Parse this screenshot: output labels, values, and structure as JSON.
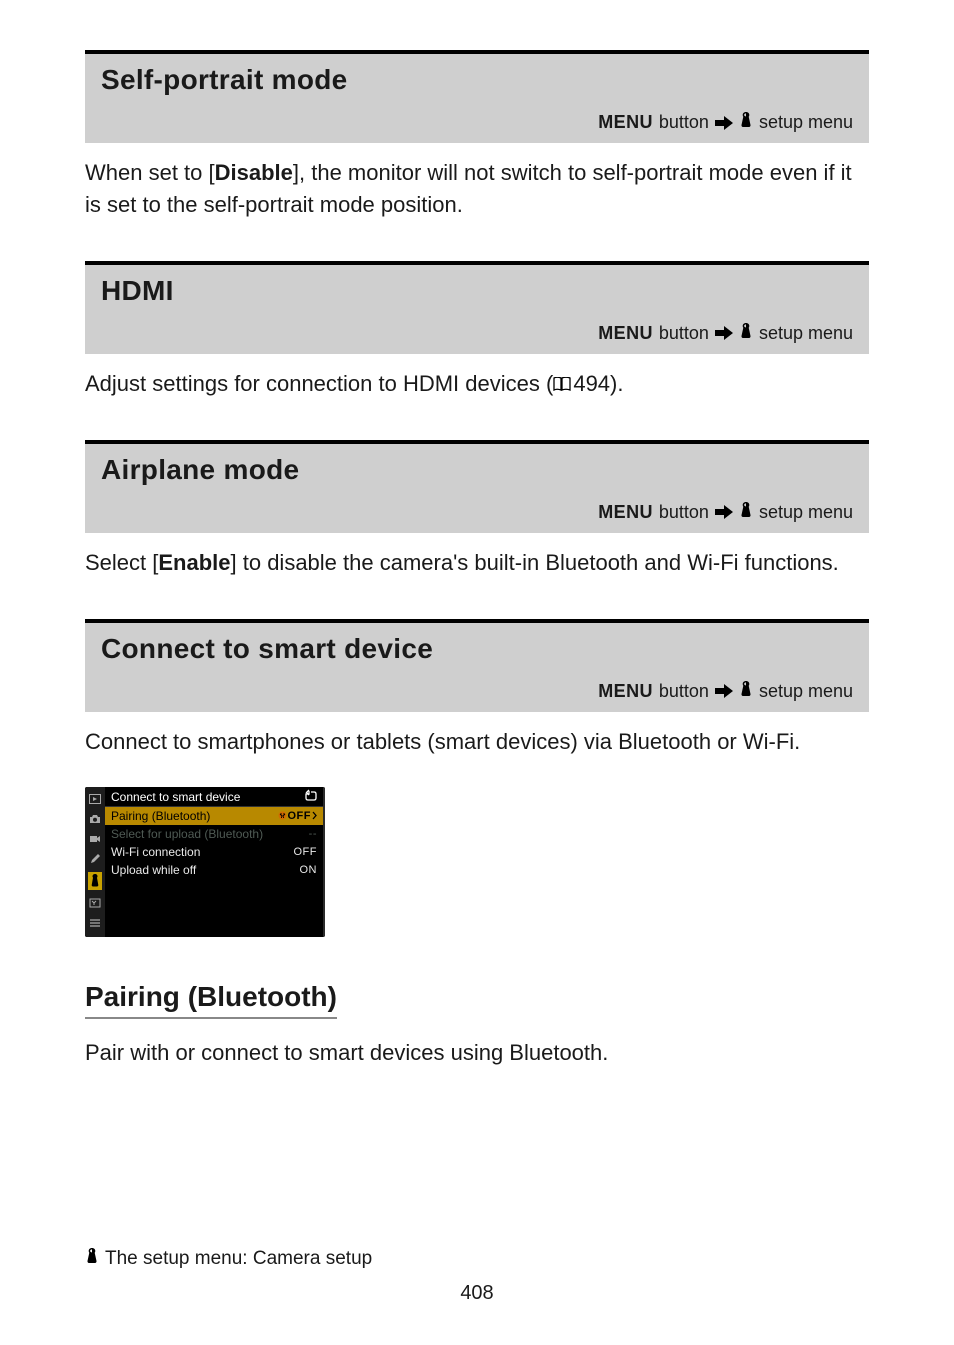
{
  "breadcrumb": {
    "menu_word": "MENU",
    "button_word": "button",
    "setup_menu": "setup menu"
  },
  "sections": {
    "self_portrait": {
      "title": "Self-portrait mode",
      "body_prefix": "When set to [",
      "body_bold": "Disable",
      "body_suffix": "], the monitor will not switch to self-portrait mode even if it is set to the self-portrait mode position."
    },
    "hdmi": {
      "title": "HDMI",
      "body_prefix": "Adjust settings for connection to HDMI devices (",
      "page_ref": "494",
      "body_suffix": ")."
    },
    "airplane": {
      "title": "Airplane mode",
      "body_prefix": "Select [",
      "body_bold": "Enable",
      "body_suffix": "] to disable the camera's built-in Bluetooth and Wi-Fi functions."
    },
    "connect": {
      "title": "Connect to smart device",
      "body": "Connect to smartphones or tablets (smart devices) via Bluetooth or Wi-Fi."
    },
    "pairing": {
      "title": "Pairing (Bluetooth)",
      "body": "Pair with or connect to smart devices using Bluetooth."
    }
  },
  "cam_screen": {
    "title": "Connect to smart device",
    "rows": [
      {
        "label": "Pairing (Bluetooth)",
        "value": "OFF",
        "style": "sel",
        "badge": true
      },
      {
        "label": "Select for upload (Bluetooth)",
        "value": "--",
        "style": "dim"
      },
      {
        "label": "Wi-Fi connection",
        "value": "OFF",
        "style": "normal"
      },
      {
        "label": "Upload while off",
        "value": "ON",
        "style": "normal"
      }
    ],
    "colors": {
      "bg": "#000000",
      "highlight": "#b88900",
      "side_highlight": "#c9a200",
      "text": "#e9e9e9",
      "dim_text": "#4f5a54"
    }
  },
  "footer": {
    "line": "The setup menu: Camera setup",
    "page_number": "408"
  }
}
